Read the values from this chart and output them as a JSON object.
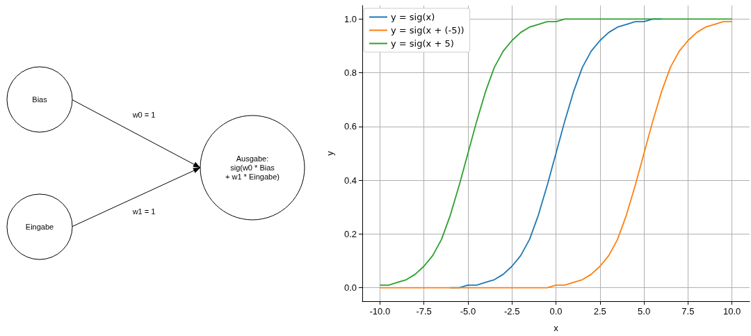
{
  "chart_data": [
    {
      "type": "other",
      "annotations": [
        "Bias",
        "Eingabe",
        "Ausgabe:\nsig(w0 * Bias\n+ w1 * Eingabe)",
        "w0 = 1",
        "w1 = 1"
      ]
    },
    {
      "type": "line",
      "xlabel": "x",
      "ylabel": "y",
      "grid": true,
      "legend": "top left",
      "marker": "none",
      "line_style": "solid",
      "x": [
        -10,
        -9.5,
        -9,
        -8.5,
        -8,
        -7.5,
        -7,
        -6.5,
        -6,
        -5.5,
        -5,
        -4.5,
        -4,
        -3.5,
        -3,
        -2.5,
        -2,
        -1.5,
        -1,
        -0.5,
        0,
        0.5,
        1,
        1.5,
        2,
        2.5,
        3,
        3.5,
        4,
        4.5,
        5,
        5.5,
        6,
        6.5,
        7,
        7.5,
        8,
        8.5,
        9,
        9.5,
        10
      ],
      "xlim": [
        -11,
        11
      ],
      "xticks": [
        {
          "value": -10,
          "label": "-10.0"
        },
        {
          "value": -7.5,
          "label": "-7.5"
        },
        {
          "value": -5,
          "label": "-5.0"
        },
        {
          "value": -2.5,
          "label": "-2.5"
        },
        {
          "value": 0,
          "label": "0.0"
        },
        {
          "value": 2.5,
          "label": "2.5"
        },
        {
          "value": 5,
          "label": "5.0"
        },
        {
          "value": 7.5,
          "label": "7.5"
        },
        {
          "value": 10,
          "label": "10.0"
        }
      ],
      "ylim": [
        -0.05,
        1.05
      ],
      "yticks": [
        {
          "value": 0,
          "label": "0.0"
        },
        {
          "value": 0.2,
          "label": "0.2"
        },
        {
          "value": 0.4,
          "label": "0.4"
        },
        {
          "value": 0.6,
          "label": "0.6"
        },
        {
          "value": 0.8,
          "label": "0.8"
        },
        {
          "value": 1,
          "label": "1.0"
        }
      ],
      "series": [
        {
          "name": "y = sig(x)",
          "color": "#1f77b4",
          "values": [
            null,
            null,
            null,
            null,
            null,
            null,
            null,
            null,
            0,
            0,
            0.01,
            0.01,
            0.02,
            0.03,
            0.05,
            0.08,
            0.12,
            0.18,
            0.27,
            0.38,
            0.5,
            0.62,
            0.73,
            0.82,
            0.88,
            0.92,
            0.95,
            0.97,
            0.98,
            0.99,
            0.99,
            1,
            1,
            null,
            null,
            null,
            null,
            null,
            null,
            null,
            null
          ]
        },
        {
          "name": "y = sig(x + (-5))",
          "color": "#ff7f0e",
          "values": [
            0,
            0,
            0,
            0,
            0,
            0,
            0,
            0,
            0,
            0,
            0,
            0,
            0,
            0,
            0,
            0,
            0,
            0,
            0,
            0,
            0.01,
            0.01,
            0.02,
            0.03,
            0.05,
            0.08,
            0.12,
            0.18,
            0.27,
            0.38,
            0.5,
            0.62,
            0.73,
            0.82,
            0.88,
            0.92,
            0.95,
            0.97,
            0.98,
            0.99,
            0.99
          ]
        },
        {
          "name": "y = sig(x + 5)",
          "color": "#2ca02c",
          "values": [
            0.01,
            0.01,
            0.02,
            0.03,
            0.05,
            0.08,
            0.12,
            0.18,
            0.27,
            0.38,
            0.5,
            0.62,
            0.73,
            0.82,
            0.88,
            0.92,
            0.95,
            0.97,
            0.98,
            0.99,
            0.99,
            1,
            1,
            1,
            1,
            1,
            1,
            1,
            1,
            1,
            1,
            1,
            1,
            1,
            1,
            1,
            1,
            1,
            1,
            1,
            1
          ]
        }
      ]
    }
  ]
}
